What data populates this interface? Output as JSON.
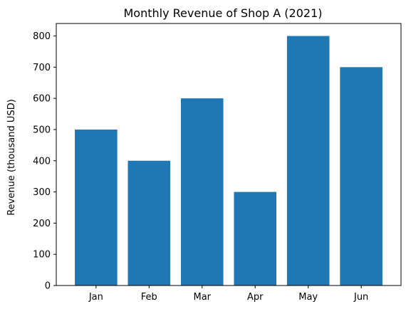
{
  "chart_data": {
    "type": "bar",
    "title": "Monthly Revenue of Shop A (2021)",
    "xlabel": "",
    "ylabel": "Revenue (thousand USD)",
    "categories": [
      "Jan",
      "Feb",
      "Mar",
      "Apr",
      "May",
      "Jun"
    ],
    "values": [
      500,
      400,
      600,
      300,
      800,
      700
    ],
    "ylim": [
      0,
      840
    ],
    "yticks": [
      0,
      100,
      200,
      300,
      400,
      500,
      600,
      700,
      800
    ],
    "bar_color": "#1f77b4",
    "grid": false,
    "legend": "none"
  }
}
